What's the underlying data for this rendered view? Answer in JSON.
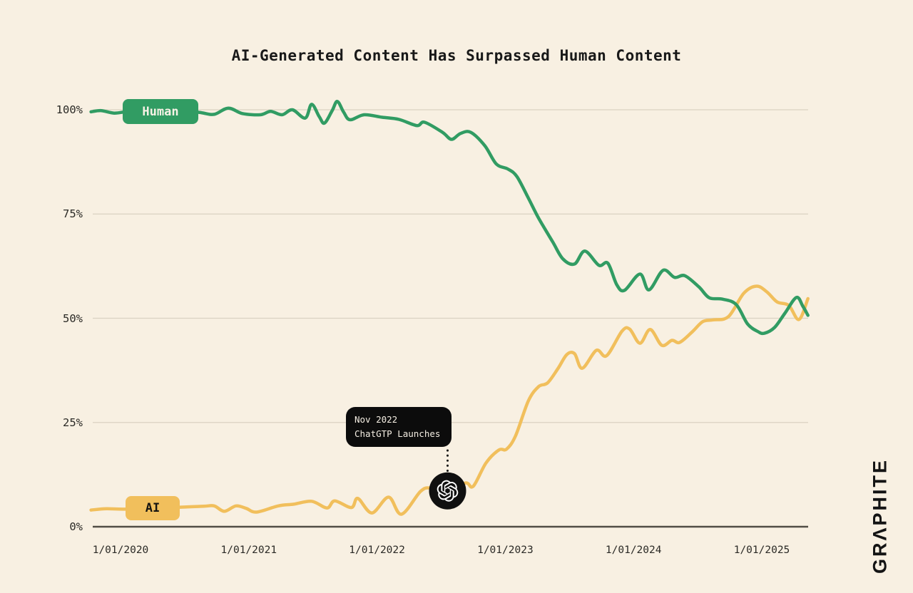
{
  "title": "AI-Generated Content Has Surpassed Human Content",
  "branding": {
    "logo_text": "GRΛPHITE"
  },
  "annotation": {
    "line1": "Nov 2022",
    "line2": "ChatGTP Launches",
    "marker_icon": "openai-logo-icon",
    "marker_year": 2022.55,
    "marker_pct": 8.6
  },
  "colors": {
    "background": "#f8f0e2",
    "grid": "#dbd2c2",
    "axis": "#514d45",
    "human_green": "#319c63",
    "ai_yellow": "#f1bf5c",
    "ink": "#191919",
    "tick_text": "#2b2a26",
    "tooltip_bg": "#0c0c0c",
    "tooltip_text": "#f4eee3",
    "marker_bg": "#101010",
    "marker_glyph": "#ffffff"
  },
  "chart_data": {
    "type": "line",
    "title": "AI-Generated Content Has Surpassed Human Content",
    "xlabel": "",
    "ylabel": "",
    "ylim": [
      0,
      100
    ],
    "grid": "horizontal",
    "legend_position": "inline-badges-on-lines",
    "y_axis": {
      "ticks": [
        {
          "value": 100,
          "label": "100%"
        },
        {
          "value": 75,
          "label": "75%"
        },
        {
          "value": 50,
          "label": "50%"
        },
        {
          "value": 25,
          "label": "25%"
        },
        {
          "value": 0,
          "label": "0%"
        }
      ]
    },
    "x_axis": {
      "start_year": 2019.77,
      "end_year": 2025.36,
      "ticks": [
        {
          "year": 2020,
          "label": "1/01/2020"
        },
        {
          "year": 2021,
          "label": "1/01/2021"
        },
        {
          "year": 2022,
          "label": "1/01/2022"
        },
        {
          "year": 2023,
          "label": "1/01/2023"
        },
        {
          "year": 2024,
          "label": "1/01/2024"
        },
        {
          "year": 2025,
          "label": "1/01/2025"
        }
      ]
    },
    "series": [
      {
        "name": "Human",
        "color": "#319c63",
        "points": [
          [
            2019.77,
            99.5
          ],
          [
            2019.85,
            99.8
          ],
          [
            2019.95,
            99.2
          ],
          [
            2020.06,
            99.6
          ],
          [
            2020.2,
            99.8
          ],
          [
            2020.35,
            99.6
          ],
          [
            2020.5,
            99.8
          ],
          [
            2020.63,
            99.3
          ],
          [
            2020.73,
            98.9
          ],
          [
            2020.84,
            100.4
          ],
          [
            2020.95,
            99.1
          ],
          [
            2021.09,
            98.8
          ],
          [
            2021.17,
            99.6
          ],
          [
            2021.26,
            98.8
          ],
          [
            2021.34,
            100.0
          ],
          [
            2021.44,
            98.0
          ],
          [
            2021.49,
            101.3
          ],
          [
            2021.55,
            98.3
          ],
          [
            2021.59,
            96.8
          ],
          [
            2021.65,
            99.8
          ],
          [
            2021.69,
            102.0
          ],
          [
            2021.74,
            99.4
          ],
          [
            2021.79,
            97.6
          ],
          [
            2021.9,
            98.8
          ],
          [
            2022.04,
            98.2
          ],
          [
            2022.17,
            97.7
          ],
          [
            2022.31,
            96.2
          ],
          [
            2022.37,
            97.0
          ],
          [
            2022.51,
            94.6
          ],
          [
            2022.58,
            92.9
          ],
          [
            2022.65,
            94.3
          ],
          [
            2022.73,
            94.6
          ],
          [
            2022.84,
            91.4
          ],
          [
            2022.93,
            87.0
          ],
          [
            2023.02,
            85.8
          ],
          [
            2023.09,
            84.0
          ],
          [
            2023.18,
            78.8
          ],
          [
            2023.26,
            74.0
          ],
          [
            2023.37,
            68.3
          ],
          [
            2023.45,
            64.2
          ],
          [
            2023.54,
            63.0
          ],
          [
            2023.62,
            66.1
          ],
          [
            2023.73,
            62.7
          ],
          [
            2023.8,
            63.2
          ],
          [
            2023.87,
            58.0
          ],
          [
            2023.93,
            56.7
          ],
          [
            2024.05,
            60.6
          ],
          [
            2024.12,
            56.8
          ],
          [
            2024.23,
            61.5
          ],
          [
            2024.32,
            59.8
          ],
          [
            2024.4,
            60.2
          ],
          [
            2024.51,
            57.5
          ],
          [
            2024.59,
            54.9
          ],
          [
            2024.69,
            54.6
          ],
          [
            2024.8,
            53.3
          ],
          [
            2024.89,
            48.6
          ],
          [
            2024.97,
            46.8
          ],
          [
            2025.02,
            46.4
          ],
          [
            2025.1,
            47.8
          ],
          [
            2025.18,
            51.2
          ],
          [
            2025.27,
            55.0
          ],
          [
            2025.32,
            52.9
          ],
          [
            2025.36,
            50.7
          ]
        ]
      },
      {
        "name": "AI",
        "color": "#f1bf5c",
        "points": [
          [
            2019.77,
            4.0
          ],
          [
            2019.89,
            4.3
          ],
          [
            2020.03,
            4.2
          ],
          [
            2020.31,
            4.4
          ],
          [
            2020.48,
            4.7
          ],
          [
            2020.65,
            4.9
          ],
          [
            2020.73,
            5.0
          ],
          [
            2020.81,
            3.7
          ],
          [
            2020.9,
            5.0
          ],
          [
            2020.98,
            4.4
          ],
          [
            2021.06,
            3.5
          ],
          [
            2021.23,
            5.0
          ],
          [
            2021.35,
            5.4
          ],
          [
            2021.49,
            6.1
          ],
          [
            2021.61,
            4.5
          ],
          [
            2021.67,
            6.2
          ],
          [
            2021.8,
            4.6
          ],
          [
            2021.85,
            6.8
          ],
          [
            2021.96,
            3.3
          ],
          [
            2022.09,
            7.1
          ],
          [
            2022.19,
            3.0
          ],
          [
            2022.34,
            8.5
          ],
          [
            2022.42,
            9.3
          ],
          [
            2022.55,
            8.6
          ],
          [
            2022.69,
            10.5
          ],
          [
            2022.75,
            9.7
          ],
          [
            2022.85,
            15.3
          ],
          [
            2022.95,
            18.4
          ],
          [
            2023.01,
            18.6
          ],
          [
            2023.08,
            21.8
          ],
          [
            2023.18,
            30.2
          ],
          [
            2023.26,
            33.6
          ],
          [
            2023.33,
            34.5
          ],
          [
            2023.41,
            37.9
          ],
          [
            2023.48,
            41.3
          ],
          [
            2023.54,
            41.5
          ],
          [
            2023.6,
            38.0
          ],
          [
            2023.71,
            42.3
          ],
          [
            2023.79,
            41.0
          ],
          [
            2023.91,
            46.9
          ],
          [
            2023.97,
            47.4
          ],
          [
            2024.05,
            44.0
          ],
          [
            2024.13,
            47.3
          ],
          [
            2024.22,
            43.5
          ],
          [
            2024.3,
            44.7
          ],
          [
            2024.36,
            44.2
          ],
          [
            2024.46,
            46.8
          ],
          [
            2024.54,
            49.2
          ],
          [
            2024.62,
            49.6
          ],
          [
            2024.74,
            50.4
          ],
          [
            2024.86,
            56.0
          ],
          [
            2024.96,
            57.7
          ],
          [
            2025.04,
            56.3
          ],
          [
            2025.12,
            53.9
          ],
          [
            2025.21,
            53.1
          ],
          [
            2025.29,
            49.7
          ],
          [
            2025.36,
            54.7
          ]
        ]
      }
    ]
  }
}
